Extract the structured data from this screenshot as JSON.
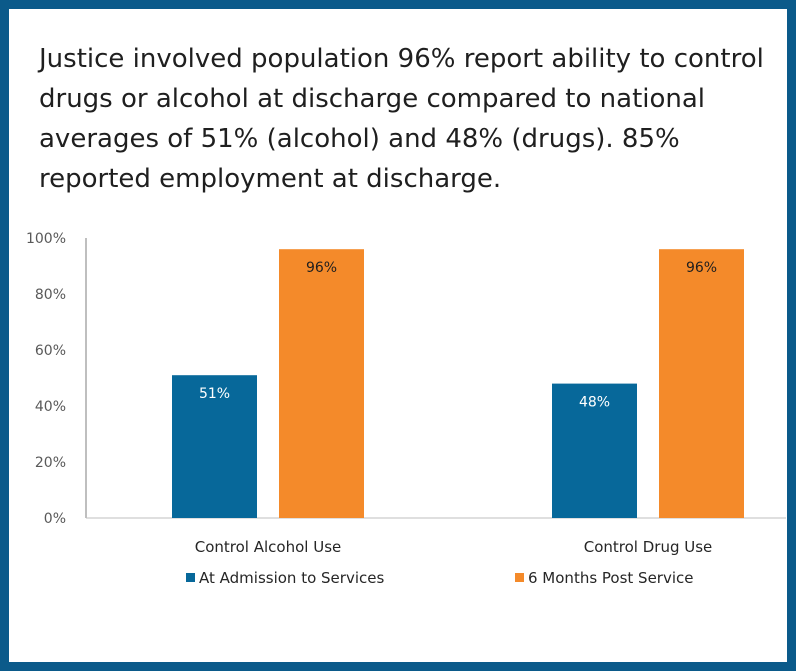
{
  "headline": "Justice involved population  96% report ability to control drugs or alcohol at discharge compared to national averages of 51% (alcohol) and 48% (drugs). 85% reported employment at discharge.",
  "colors": {
    "frame": "#0b5a8a",
    "series1": "#07689a",
    "series2": "#f48a2a"
  },
  "chart_data": {
    "type": "bar",
    "categories": [
      "Control Alcohol Use",
      "Control Drug Use"
    ],
    "series": [
      {
        "name": "At Admission to Services",
        "values": [
          51,
          48
        ],
        "labels": [
          "51%",
          "48%"
        ],
        "color": "#07689a"
      },
      {
        "name": "6 Months Post Service",
        "values": [
          96,
          96
        ],
        "labels": [
          "96%",
          "96%"
        ],
        "color": "#f48a2a"
      }
    ],
    "y_ticks": [
      "0%",
      "20%",
      "40%",
      "60%",
      "80%",
      "100%"
    ],
    "ylim": [
      0,
      100
    ],
    "grid": false,
    "legend": "bottom"
  }
}
